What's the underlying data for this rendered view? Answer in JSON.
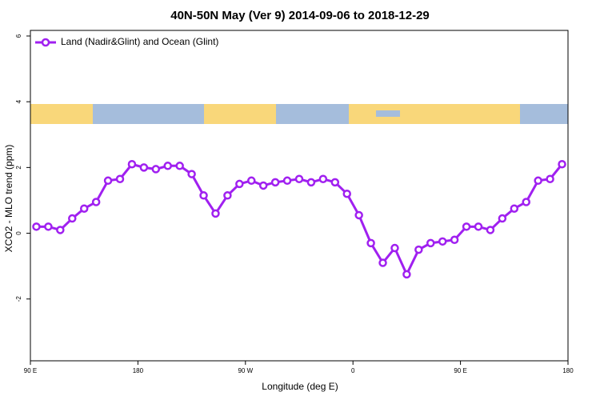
{
  "chart_data": {
    "type": "line",
    "title": "40N-50N May (Ver 9)   2014-09-06 to 2018-12-29",
    "xlabel": "Longitude (deg E)",
    "ylabel": "XCO2 - MLO trend (ppm)",
    "x": [
      95,
      105,
      115,
      125,
      135,
      145,
      155,
      165,
      175,
      185,
      195,
      205,
      215,
      225,
      235,
      245,
      255,
      265,
      275,
      285,
      295,
      305,
      315,
      325,
      335,
      345,
      355,
      365,
      375,
      385,
      395,
      405,
      415,
      425,
      435,
      445,
      455,
      465,
      475,
      485,
      495,
      505,
      515,
      525,
      535
    ],
    "series": [
      {
        "name": "Land (Nadir&Glint) and Ocean (Glint)",
        "color": "#a020f0",
        "values": [
          0.2,
          0.2,
          0.1,
          0.45,
          0.75,
          0.95,
          1.6,
          1.65,
          2.1,
          2.0,
          1.95,
          2.05,
          2.05,
          1.8,
          1.15,
          0.6,
          1.15,
          1.5,
          1.6,
          1.45,
          1.55,
          1.6,
          1.65,
          1.55,
          1.65,
          1.55,
          1.2,
          0.55,
          -0.3,
          -0.9,
          -0.45,
          -1.25,
          -0.5,
          -0.3,
          -0.25,
          -0.2,
          0.2,
          0.2,
          0.1,
          0.45,
          0.75,
          0.95,
          1.6,
          1.65,
          2.1
        ]
      }
    ],
    "xlim": [
      90,
      540
    ],
    "xticks": [
      {
        "value": 90,
        "label": "90 E"
      },
      180,
      {
        "value": 270,
        "label": "90 W"
      },
      {
        "value": 360,
        "label": "0"
      },
      {
        "value": 450,
        "label": "90 E"
      },
      {
        "value": 540,
        "label": "180"
      }
    ],
    "ylim": [
      -3.88,
      6.17
    ],
    "yticks": [
      -2,
      0,
      2,
      4,
      6
    ],
    "legend": "top-left"
  }
}
